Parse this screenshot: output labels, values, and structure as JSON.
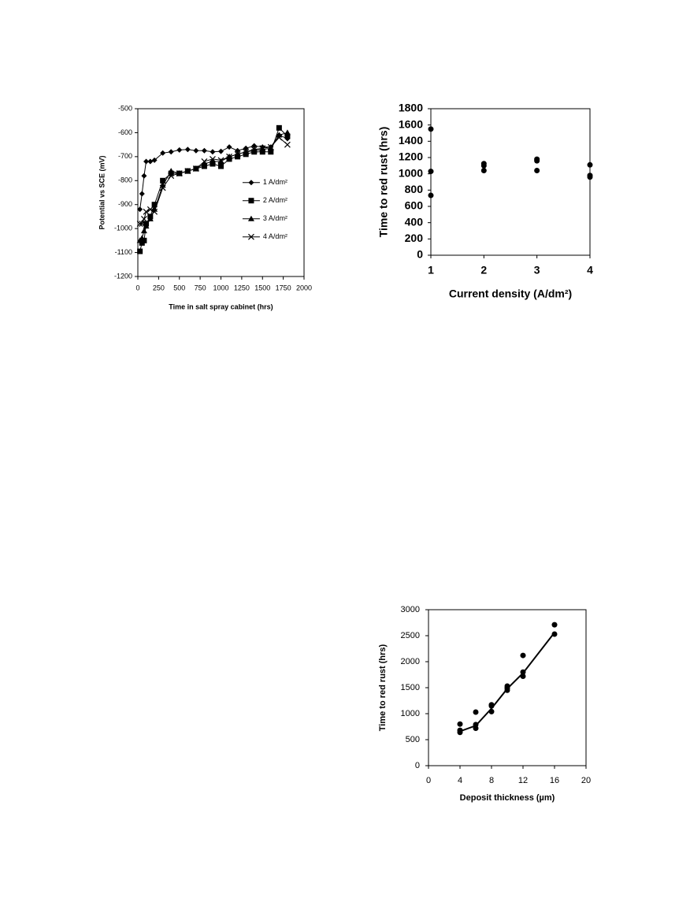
{
  "chart_data": [
    {
      "type": "line",
      "y_label": "Potential vs SCE  (mV)",
      "x_label": "Time in salt spray cabinet   (hrs)",
      "x": [
        25,
        50,
        75,
        100,
        150,
        200,
        300,
        400,
        500,
        600,
        700,
        800,
        900,
        1000,
        1100,
        1200,
        1300,
        1400,
        1500,
        1600,
        1700,
        1800
      ],
      "series": [
        {
          "name": "1 A/dm²",
          "color": "#000000",
          "marker": "diamond",
          "values": [
            -920,
            -855,
            -780,
            -720,
            -720,
            -715,
            -685,
            -680,
            -672,
            -670,
            -675,
            -675,
            -680,
            -678,
            -660,
            -675,
            -665,
            -655,
            -660,
            -660,
            -610,
            -625
          ]
        },
        {
          "name": "2 A/dm²",
          "color": "#000000",
          "marker": "square",
          "values": [
            -1095,
            -1060,
            -1050,
            -980,
            -950,
            -900,
            -800,
            -770,
            -770,
            -760,
            -750,
            -740,
            -730,
            -740,
            -710,
            -700,
            -690,
            -680,
            -680,
            -680,
            -580,
            -615
          ]
        },
        {
          "name": "3 A/dm²",
          "color": "#000000",
          "marker": "triangle",
          "values": [
            -1050,
            -1040,
            -1010,
            -990,
            -960,
            -920,
            -820,
            -760,
            -770,
            -760,
            -750,
            -730,
            -720,
            -720,
            -700,
            -690,
            -680,
            -675,
            -670,
            -665,
            -610,
            -600
          ]
        },
        {
          "name": "4 A/dm²",
          "color": "#000000",
          "marker": "x",
          "values": [
            -980,
            -980,
            -960,
            -930,
            -920,
            -930,
            -830,
            -780,
            -770,
            -760,
            -750,
            -720,
            -710,
            -715,
            -700,
            -690,
            -680,
            -670,
            -665,
            -660,
            -620,
            -650
          ]
        }
      ],
      "xlim": [
        0,
        2000
      ],
      "xticks": [
        0,
        250,
        500,
        750,
        1000,
        1250,
        1500,
        1750,
        2000
      ],
      "ylim": [
        -1200,
        -500
      ],
      "yticks": [
        -1200,
        -1100,
        -1000,
        -900,
        -800,
        -700,
        -600,
        -500
      ],
      "legend": "center right"
    },
    {
      "type": "scatter",
      "y_label": "Time to red rust  (hrs)",
      "x_label": "Current density  (A/dm²)",
      "series": [
        {
          "color": "#000000",
          "marker": "circle",
          "x": [
            1,
            1,
            1,
            2,
            2,
            2,
            3,
            3,
            3,
            4,
            4,
            4
          ],
          "values": [
            1550,
            1030,
            735,
            1125,
            1100,
            1040,
            1180,
            1160,
            1040,
            1110,
            980,
            960
          ]
        }
      ],
      "xlim": [
        1,
        4
      ],
      "xticks": [
        1,
        2,
        3,
        4
      ],
      "ylim": [
        0,
        1800
      ],
      "yticks": [
        0,
        200,
        400,
        600,
        800,
        1000,
        1200,
        1400,
        1600,
        1800
      ]
    },
    {
      "type": "scatter",
      "y_label": "Time to red rust  (hrs)",
      "x_label": "Deposit thickness (µm)",
      "series": [
        {
          "color": "#000000",
          "marker": "circle",
          "x": [
            4,
            4,
            4,
            6,
            6,
            6,
            8,
            8,
            8,
            10,
            10,
            10,
            12,
            12,
            12,
            16,
            16
          ],
          "values": [
            800,
            680,
            640,
            1030,
            790,
            720,
            1170,
            1150,
            1040,
            1530,
            1490,
            1450,
            2120,
            1800,
            1720,
            2710,
            2530
          ]
        },
        {
          "color": "#000000",
          "marker": "none",
          "x": [
            4,
            6,
            8,
            10,
            12,
            16
          ],
          "values": [
            660,
            770,
            1100,
            1480,
            1780,
            2560
          ]
        }
      ],
      "xlim": [
        0,
        20
      ],
      "xticks": [
        0,
        4,
        8,
        12,
        16,
        20
      ],
      "ylim": [
        0,
        3000
      ],
      "yticks": [
        0,
        500,
        1000,
        1500,
        2000,
        2500,
        3000
      ]
    }
  ]
}
